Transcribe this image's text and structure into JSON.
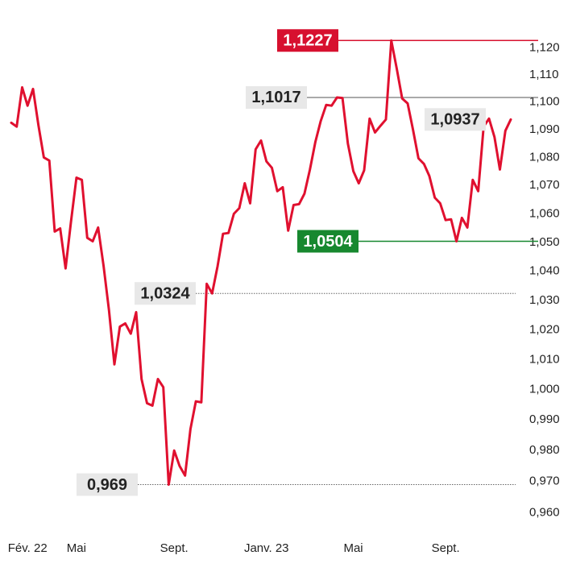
{
  "chart_data": {
    "type": "line",
    "log_scale": true,
    "grid": false,
    "ylim": [
      0.955,
      1.13
    ],
    "yticks": [
      {
        "value": 1.12,
        "label": "1,120"
      },
      {
        "value": 1.11,
        "label": "1,110"
      },
      {
        "value": 1.1,
        "label": "1,100"
      },
      {
        "value": 1.09,
        "label": "1,090"
      },
      {
        "value": 1.08,
        "label": "1,080"
      },
      {
        "value": 1.07,
        "label": "1,070"
      },
      {
        "value": 1.06,
        "label": "1,060"
      },
      {
        "value": 1.05,
        "label": "1,050"
      },
      {
        "value": 1.04,
        "label": "1,040"
      },
      {
        "value": 1.03,
        "label": "1,030"
      },
      {
        "value": 1.02,
        "label": "1,020"
      },
      {
        "value": 1.01,
        "label": "1,010"
      },
      {
        "value": 1.0,
        "label": "1,000"
      },
      {
        "value": 0.99,
        "label": "0,990"
      },
      {
        "value": 0.98,
        "label": "0,980"
      },
      {
        "value": 0.97,
        "label": "0,970"
      },
      {
        "value": 0.96,
        "label": "0,960"
      }
    ],
    "categories": [
      null,
      null,
      null,
      "Fév. 22",
      null,
      null,
      null,
      null,
      null,
      null,
      null,
      null,
      "Mai",
      null,
      null,
      null,
      null,
      null,
      null,
      null,
      null,
      null,
      null,
      null,
      null,
      null,
      null,
      null,
      null,
      null,
      "Sept.",
      null,
      null,
      null,
      null,
      null,
      null,
      null,
      null,
      null,
      null,
      null,
      null,
      null,
      null,
      null,
      null,
      "Janv. 23",
      null,
      null,
      null,
      null,
      null,
      null,
      null,
      null,
      null,
      null,
      null,
      null,
      null,
      null,
      null,
      "Mai",
      null,
      null,
      null,
      null,
      null,
      null,
      null,
      null,
      null,
      null,
      null,
      null,
      null,
      null,
      null,
      null,
      "Sept.",
      null,
      null,
      null,
      null,
      null,
      null,
      null,
      null,
      null,
      null,
      null,
      null
    ],
    "series": [
      {
        "color": "#e0102f",
        "values": [
          1.0925,
          1.0911,
          1.1054,
          1.0987,
          1.1048,
          1.0916,
          1.08,
          1.0789,
          1.0538,
          1.0549,
          1.041,
          1.0572,
          1.0728,
          1.072,
          1.0516,
          1.0504,
          1.0552,
          1.0418,
          1.0266,
          1.0084,
          1.0211,
          1.0222,
          1.0187,
          1.026,
          1.0035,
          0.9955,
          0.9947,
          1.0035,
          1.0008,
          0.969,
          0.98,
          0.975,
          0.9719,
          0.987,
          0.9961,
          0.9958,
          1.0357,
          1.0324,
          1.0418,
          1.053,
          1.0533,
          1.06,
          1.062,
          1.0708,
          1.0637,
          1.0829,
          1.0861,
          1.0786,
          1.0763,
          1.068,
          1.0694,
          1.0541,
          1.0631,
          1.0634,
          1.0671,
          1.0757,
          1.0855,
          1.0931,
          1.099,
          1.0987,
          1.1017,
          1.1015,
          1.085,
          1.0751,
          1.0708,
          1.0754,
          1.094,
          1.089,
          1.0914,
          1.0937,
          1.1227,
          1.1122,
          1.1013,
          1.0995,
          1.0899,
          1.0797,
          1.0777,
          1.0734,
          1.0657,
          1.0637,
          1.0578,
          1.0581,
          1.0504,
          1.0586,
          1.0552,
          1.072,
          1.068,
          1.0911,
          1.094,
          1.0873,
          1.0757,
          1.0896,
          1.0937
        ]
      }
    ],
    "annotations": [
      {
        "value": 1.1227,
        "label": "1,1227",
        "color": "#d7102f",
        "line": "solid"
      },
      {
        "value": 1.1017,
        "label": "1,1017",
        "color": "#e8e8e8",
        "line": "solid"
      },
      {
        "value": 1.0937,
        "label": "1,0937",
        "color": "#e8e8e8",
        "line": "none"
      },
      {
        "value": 1.0504,
        "label": "1,0504",
        "color": "#17882f",
        "line": "solid"
      },
      {
        "value": 1.0324,
        "label": "1,0324",
        "color": "#e8e8e8",
        "line": "dotted"
      },
      {
        "value": 0.969,
        "label": "0,969",
        "color": "#e8e8e8",
        "line": "dotted"
      }
    ]
  }
}
